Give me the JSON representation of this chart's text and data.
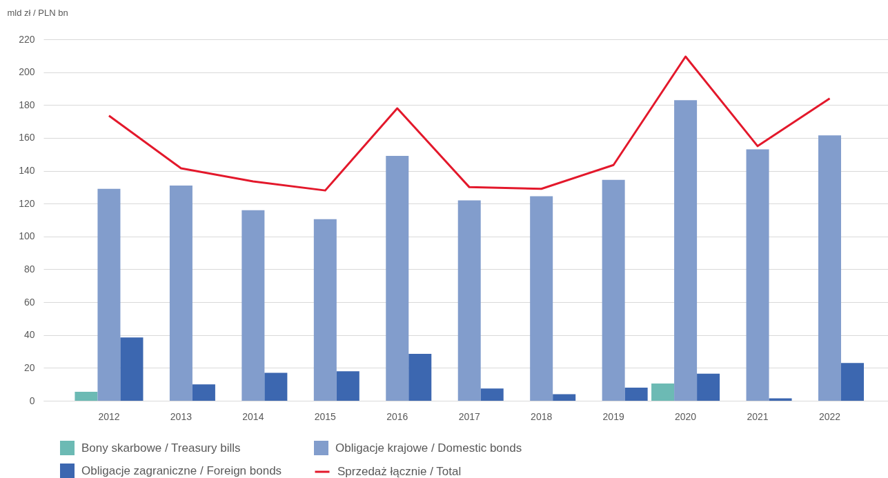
{
  "chart_data": {
    "type": "bar",
    "ylabel": "mld zł / PLN bn",
    "categories": [
      "2012",
      "2013",
      "2014",
      "2015",
      "2016",
      "2017",
      "2018",
      "2019",
      "2020",
      "2021",
      "2022"
    ],
    "series": [
      {
        "name": "Bony skarbowe / Treasury bills",
        "color": "#6cbab4",
        "values": [
          5.5,
          null,
          null,
          null,
          null,
          null,
          null,
          null,
          10.5,
          null,
          null
        ]
      },
      {
        "name": "Obligacje krajowe / Domestic bonds",
        "color": "#829dcc",
        "values": [
          129,
          131,
          116,
          110.5,
          149,
          122,
          124.5,
          134.5,
          183,
          153,
          161.5
        ]
      },
      {
        "name": "Obligacje zagraniczne / Foreign bonds",
        "color": "#3c67b0",
        "values": [
          38.5,
          10,
          17,
          18,
          28.5,
          7.5,
          4,
          8,
          16.5,
          1.5,
          23
        ]
      },
      {
        "name": "Sprzedaż łącznie / Total",
        "type": "line",
        "color": "#e3182b",
        "values": [
          173.5,
          141.5,
          133.5,
          128,
          178,
          130,
          129,
          143.5,
          209.5,
          155,
          184
        ]
      }
    ],
    "ylim": [
      0,
      220
    ],
    "yticks": [
      0,
      20,
      40,
      60,
      80,
      100,
      120,
      140,
      160,
      180,
      200,
      220
    ],
    "grid": "y",
    "legend": "bottom",
    "marker": "none",
    "line_style": "solid"
  }
}
